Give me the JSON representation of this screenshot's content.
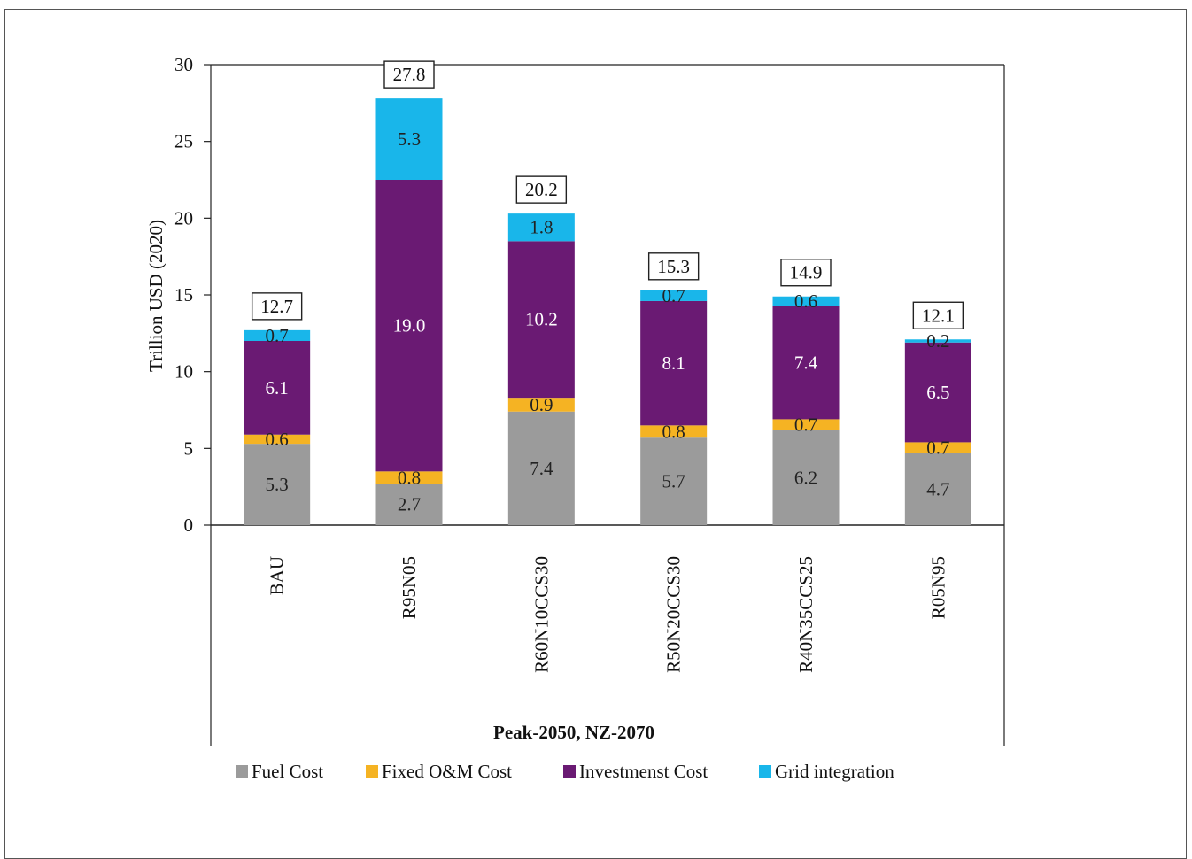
{
  "chart_data": {
    "type": "bar",
    "stacked": true,
    "categories": [
      "BAU",
      "R95N05",
      "R60N10CCS30",
      "R50N20CCS30",
      "R40N35CCS25",
      "R05N95"
    ],
    "series": [
      {
        "name": "Fuel Cost",
        "color": "#9b9b9b",
        "values": [
          5.3,
          2.7,
          7.4,
          5.7,
          6.2,
          4.7
        ]
      },
      {
        "name": "Fixed O&M Cost",
        "color": "#f5b323",
        "values": [
          0.6,
          0.8,
          0.9,
          0.8,
          0.7,
          0.7
        ]
      },
      {
        "name": "Investmenst Cost",
        "color": "#6a1a73",
        "values": [
          6.1,
          19.0,
          10.2,
          8.1,
          7.4,
          6.5
        ]
      },
      {
        "name": "Grid integration",
        "color": "#19b6ea",
        "values": [
          0.7,
          5.3,
          1.8,
          0.7,
          0.6,
          0.2
        ]
      }
    ],
    "totals": [
      12.7,
      27.8,
      20.2,
      15.3,
      14.9,
      12.1
    ],
    "xlabel": "Peak-2050, NZ-2070",
    "ylabel": "Trillion USD (2020)",
    "ylim": [
      0,
      30
    ],
    "yticks": [
      0,
      5,
      10,
      15,
      20,
      25,
      30
    ],
    "legend_position": "bottom",
    "grid": false
  }
}
